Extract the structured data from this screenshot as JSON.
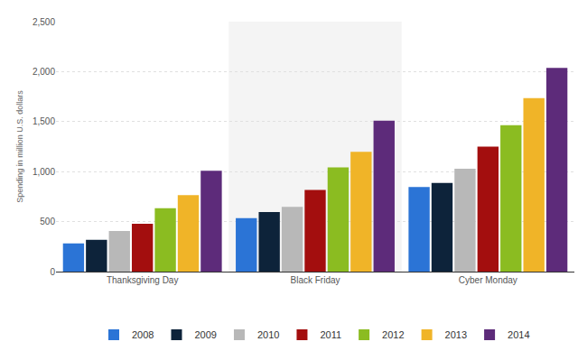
{
  "chart_data": {
    "type": "bar",
    "y_label": "Spending in million U.S. dollars",
    "categories": [
      "Thanksgiving Day",
      "Black Friday",
      "Cyber Monday"
    ],
    "series": [
      {
        "name": "2008",
        "color": "#2b74d6",
        "values": [
          282,
          534,
          846
        ]
      },
      {
        "name": "2009",
        "color": "#0d233a",
        "values": [
          318,
          595,
          887
        ]
      },
      {
        "name": "2010",
        "color": "#b8b8b8",
        "values": [
          407,
          648,
          1028
        ]
      },
      {
        "name": "2011",
        "color": "#a30e0e",
        "values": [
          479,
          816,
          1251
        ]
      },
      {
        "name": "2012",
        "color": "#8bbc21",
        "values": [
          633,
          1042,
          1465
        ]
      },
      {
        "name": "2013",
        "color": "#f0b428",
        "values": [
          766,
          1198,
          1735
        ]
      },
      {
        "name": "2014",
        "color": "#5d2b7a",
        "values": [
          1009,
          1510,
          2038
        ]
      }
    ],
    "ylim": [
      0,
      2500
    ],
    "yticks": [
      0,
      500,
      {
        "value": 1000,
        "label": "1,000"
      },
      {
        "value": 1500,
        "label": "1,500"
      },
      {
        "value": 2000,
        "label": "2,000"
      },
      {
        "value": 2500,
        "label": "2,500"
      }
    ],
    "grid": true,
    "legend": "bottom"
  }
}
